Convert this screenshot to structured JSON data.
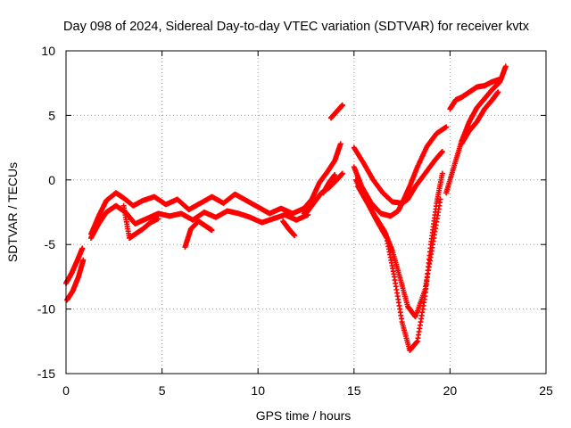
{
  "chart_data": {
    "type": "scatter",
    "title": "Day 098 of 2024, Sidereal Day-to-day VTEC variation (SDTVAR) for receiver kvtx",
    "xlabel": "GPS time / hours",
    "ylabel": "SDTVAR / TECUs",
    "xlim": [
      0,
      25
    ],
    "ylim": [
      -15,
      10
    ],
    "xticks": [
      0,
      5,
      10,
      15,
      20,
      25
    ],
    "yticks": [
      -15,
      -10,
      -5,
      0,
      5,
      10
    ],
    "grid": true,
    "marker": "+",
    "color": "#ff0000",
    "series": [
      {
        "x": [
          0.0,
          0.3,
          0.6,
          0.85
        ],
        "y": [
          -8.0,
          -7.2,
          -6.2,
          -5.3
        ]
      },
      {
        "x": [
          0.05,
          0.35,
          0.65,
          0.9
        ],
        "y": [
          -9.3,
          -8.6,
          -7.5,
          -6.2
        ]
      },
      {
        "x": [
          1.3,
          1.7,
          2.1,
          2.6,
          3.0,
          3.5,
          4.0,
          4.6,
          5.2,
          5.8,
          6.4,
          7.0,
          7.6,
          8.2,
          8.8,
          9.4,
          10.0,
          10.6,
          11.2,
          11.8,
          12.4,
          12.8
        ],
        "y": [
          -4.2,
          -2.8,
          -1.6,
          -1.0,
          -1.4,
          -2.0,
          -1.6,
          -1.3,
          -1.9,
          -1.5,
          -2.3,
          -1.8,
          -1.3,
          -1.8,
          -1.1,
          -1.6,
          -2.1,
          -2.6,
          -2.2,
          -2.6,
          -2.2,
          -1.5
        ]
      },
      {
        "x": [
          1.3,
          1.7,
          2.1,
          2.6,
          3.1,
          3.6,
          4.2,
          4.8,
          5.4,
          6.0,
          6.6,
          7.2,
          7.8,
          8.4,
          9.0,
          9.6,
          10.2,
          10.8,
          11.4,
          12.0,
          12.6
        ],
        "y": [
          -4.5,
          -3.4,
          -2.5,
          -2.0,
          -2.5,
          -3.4,
          -3.0,
          -2.6,
          -2.8,
          -2.6,
          -3.1,
          -2.5,
          -2.9,
          -2.4,
          -2.6,
          -2.9,
          -3.3,
          -3.0,
          -2.7,
          -3.1,
          -2.7
        ]
      },
      {
        "x": [
          3.0,
          3.3,
          3.6,
          4.0,
          4.4,
          4.8
        ],
        "y": [
          -2.0,
          -4.5,
          -4.2,
          -3.8,
          -3.3,
          -3.0
        ]
      },
      {
        "x": [
          6.2,
          6.5,
          6.9,
          7.3,
          7.6
        ],
        "y": [
          -5.2,
          -3.8,
          -3.2,
          -3.6,
          -3.9
        ]
      },
      {
        "x": [
          11.3,
          11.6,
          11.9
        ],
        "y": [
          -3.2,
          -3.8,
          -4.3
        ]
      },
      {
        "x": [
          12.4,
          12.8,
          13.2,
          13.6,
          14.0,
          14.3
        ],
        "y": [
          -2.6,
          -1.5,
          -0.2,
          0.6,
          1.5,
          2.8
        ]
      },
      {
        "x": [
          12.5,
          12.9,
          13.3,
          13.7,
          14.1,
          14.4
        ],
        "y": [
          -2.6,
          -1.8,
          -1.0,
          -0.6,
          0.0,
          0.5
        ]
      },
      {
        "x": [
          13.4,
          13.7,
          14.0
        ],
        "y": [
          -1.0,
          -0.2,
          0.4
        ]
      },
      {
        "x": [
          13.8,
          14.1,
          14.4
        ],
        "y": [
          4.8,
          5.3,
          5.8
        ]
      },
      {
        "x": [
          15.0,
          15.4,
          15.9,
          16.4,
          16.9,
          17.3,
          17.6,
          17.9,
          18.3,
          18.8,
          19.3,
          19.8
        ],
        "y": [
          1.0,
          -0.5,
          -1.8,
          -2.6,
          -2.8,
          -2.4,
          -1.5,
          -0.5,
          1.0,
          2.6,
          3.6,
          4.1
        ]
      },
      {
        "x": [
          15.0,
          15.5,
          16.0,
          16.5,
          17.0,
          17.5,
          17.8,
          18.2,
          18.7,
          19.2,
          19.6
        ],
        "y": [
          2.5,
          1.3,
          0.0,
          -1.0,
          -1.7,
          -1.8,
          -1.5,
          -0.5,
          0.5,
          1.5,
          2.2
        ]
      },
      {
        "x": [
          15.1,
          15.6,
          16.1,
          16.6,
          17.0,
          17.4,
          17.8,
          18.2,
          18.7,
          19.1,
          19.5
        ],
        "y": [
          0.0,
          -1.5,
          -2.8,
          -4.0,
          -5.5,
          -7.6,
          -9.8,
          -10.6,
          -8.5,
          -5.0,
          -1.5
        ]
      },
      {
        "x": [
          15.2,
          15.7,
          16.2,
          16.7,
          17.1,
          17.5,
          17.9,
          18.3,
          18.7,
          19.0,
          19.3,
          19.6
        ],
        "y": [
          -0.5,
          -1.8,
          -3.2,
          -4.5,
          -7.5,
          -11.0,
          -13.2,
          -12.5,
          -9.0,
          -5.0,
          -1.8,
          0.5
        ]
      },
      {
        "x": [
          19.8,
          20.2,
          20.6,
          21.0,
          21.4,
          21.8,
          22.2,
          22.6,
          22.9
        ],
        "y": [
          -1.0,
          1.0,
          3.0,
          4.5,
          5.6,
          6.3,
          7.0,
          7.6,
          8.8
        ]
      },
      {
        "x": [
          20.6,
          21.0,
          21.4,
          21.8,
          22.2,
          22.5
        ],
        "y": [
          2.8,
          3.8,
          4.5,
          5.5,
          6.2,
          6.8
        ]
      },
      {
        "x": [
          20.0,
          20.3,
          20.6,
          21.0,
          21.4,
          21.8,
          22.2,
          22.6
        ],
        "y": [
          5.5,
          6.2,
          6.4,
          6.8,
          7.2,
          7.3,
          7.6,
          7.8
        ]
      }
    ]
  }
}
